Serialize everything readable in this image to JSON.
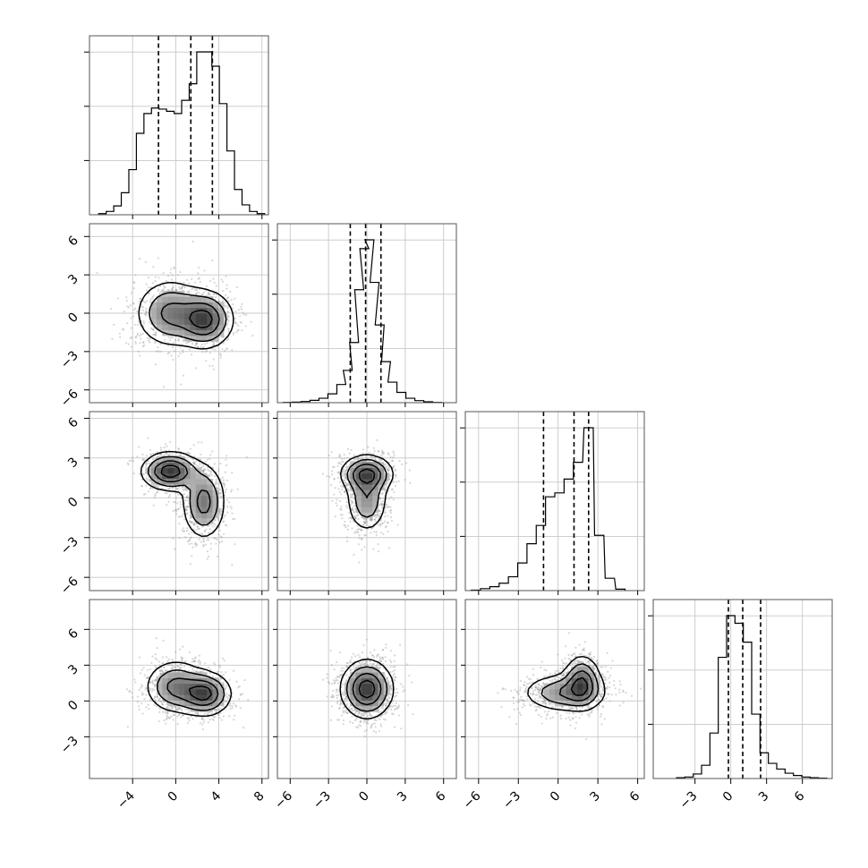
{
  "chart_data": {
    "type": "corner",
    "parameters": 4,
    "grid": true,
    "ranges": [
      [
        -8,
        8.6
      ],
      [
        -7,
        7
      ],
      [
        -7,
        6.5
      ],
      [
        -6.5,
        8.5
      ]
    ],
    "ticks": {
      "x0": [
        "−4",
        "0",
        "4",
        "8"
      ],
      "x1": [
        "−6",
        "−3",
        "0",
        "3",
        "6"
      ],
      "x2": [
        "−6",
        "−3",
        "0",
        "3",
        "6"
      ],
      "x3": [
        "−3",
        "0",
        "3",
        "6"
      ],
      "y1": [
        "6",
        "3",
        "0",
        "−3",
        "−6"
      ],
      "y2": [
        "6",
        "3",
        "0",
        "−3",
        "−6"
      ],
      "y3": [
        "6",
        "3",
        "0",
        "−3"
      ]
    },
    "tick_values": {
      "x0": [
        -4,
        0,
        4,
        8
      ],
      "x1": [
        -6,
        -3,
        0,
        3,
        6
      ],
      "x2": [
        -6,
        -3,
        0,
        3,
        6
      ],
      "x3": [
        -3,
        0,
        3,
        6
      ],
      "y1": [
        6,
        3,
        0,
        -3,
        -6
      ],
      "y2": [
        6,
        3,
        0,
        -3,
        -6
      ],
      "y3": [
        6,
        3,
        0,
        -3
      ]
    },
    "quantiles": [
      [
        -1.6,
        1.4,
        3.4
      ],
      [
        -1.3,
        -0.1,
        1.1
      ],
      [
        -1.1,
        1.2,
        2.3
      ],
      [
        -0.2,
        1.0,
        2.5
      ]
    ],
    "histograms": [
      {
        "x": [
          -6.8,
          -6.1,
          -5.4,
          -4.7,
          -4.0,
          -3.3,
          -2.6,
          -1.9,
          -1.2,
          -0.5,
          0.2,
          0.9,
          1.6,
          2.3,
          3.0,
          3.7,
          4.4,
          5.1,
          5.8,
          6.5,
          7.2,
          7.9
        ],
        "counts": [
          1,
          3,
          8,
          20,
          41,
          74,
          92,
          97,
          96,
          94,
          92,
          104,
          119,
          148,
          148,
          135,
          101,
          58,
          23,
          9,
          3,
          1
        ]
      },
      {
        "x": [
          -6.2,
          -5.5,
          -4.8,
          -4.1,
          -3.4,
          -2.7,
          -2.0,
          -1.5,
          -1.0,
          -0.6,
          -0.2,
          0.2,
          0.6,
          1.0,
          1.5,
          2.0,
          2.7,
          3.4,
          4.1,
          4.8,
          5.5
        ],
        "counts": [
          1,
          2,
          4,
          8,
          15,
          30,
          62,
          110,
          205,
          385,
          525,
          555,
          410,
          265,
          140,
          70,
          35,
          15,
          7,
          3,
          1
        ]
      },
      {
        "x": [
          -6.2,
          -5.5,
          -4.8,
          -4.1,
          -3.4,
          -2.7,
          -2.0,
          -1.3,
          -0.6,
          0.1,
          0.8,
          1.5,
          2.3,
          3.1,
          3.9,
          4.7
        ],
        "counts": [
          1,
          4,
          8,
          15,
          28,
          56,
          95,
          132,
          190,
          198,
          226,
          260,
          330,
          112,
          25,
          3
        ]
      },
      {
        "x": [
          -4.2,
          -3.5,
          -2.8,
          -2.1,
          -1.4,
          -0.7,
          0.0,
          0.7,
          1.4,
          2.1,
          2.8,
          3.5,
          4.2,
          4.9,
          5.6,
          6.3,
          7.0,
          7.7
        ],
        "counts": [
          2,
          4,
          12,
          35,
          120,
          320,
          430,
          410,
          360,
          170,
          68,
          40,
          25,
          14,
          8,
          4,
          2,
          1
        ]
      }
    ],
    "pairs": [
      {
        "xi": 0,
        "yi": 1,
        "components": [
          {
            "w": 0.5,
            "mx": -0.5,
            "my": 0,
            "sx": 1.6,
            "sy": 1.3,
            "r": 0
          },
          {
            "w": 0.5,
            "mx": 2.7,
            "my": -0.5,
            "sx": 1.3,
            "sy": 1.1,
            "r": 0
          }
        ]
      },
      {
        "xi": 0,
        "yi": 2,
        "components": [
          {
            "w": 0.5,
            "mx": -0.5,
            "my": 2,
            "sx": 1.3,
            "sy": 0.7,
            "r": 0
          },
          {
            "w": 0.5,
            "mx": 2.6,
            "my": -0.3,
            "sx": 1.0,
            "sy": 1.4,
            "r": 0
          }
        ]
      },
      {
        "xi": 1,
        "yi": 2,
        "components": [
          {
            "w": 0.55,
            "mx": 0,
            "my": 1.8,
            "sx": 1.0,
            "sy": 0.7,
            "r": 0
          },
          {
            "w": 0.45,
            "mx": 0,
            "my": -0.2,
            "sx": 0.8,
            "sy": 1.2,
            "r": 0
          }
        ]
      },
      {
        "xi": 0,
        "yi": 3,
        "components": [
          {
            "w": 0.5,
            "mx": 0,
            "my": 1.2,
            "sx": 1.4,
            "sy": 1.1,
            "r": 0
          },
          {
            "w": 0.5,
            "mx": 2.7,
            "my": 0.6,
            "sx": 1.2,
            "sy": 0.9,
            "r": 0
          }
        ]
      },
      {
        "xi": 1,
        "yi": 3,
        "components": [
          {
            "w": 1.0,
            "mx": 0,
            "my": 1.0,
            "sx": 1.0,
            "sy": 1.2,
            "r": 0
          }
        ]
      },
      {
        "xi": 2,
        "yi": 3,
        "components": [
          {
            "w": 0.45,
            "mx": 1.8,
            "my": 1.6,
            "sx": 0.7,
            "sy": 1.1,
            "r": 0
          },
          {
            "w": 0.55,
            "mx": 0.5,
            "my": 0.7,
            "sx": 1.6,
            "sy": 0.8,
            "r": 0
          }
        ]
      }
    ]
  }
}
